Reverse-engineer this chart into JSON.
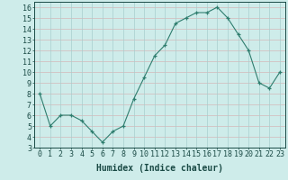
{
  "x": [
    0,
    1,
    2,
    3,
    4,
    5,
    6,
    7,
    8,
    9,
    10,
    11,
    12,
    13,
    14,
    15,
    16,
    17,
    18,
    19,
    20,
    21,
    22,
    23
  ],
  "y": [
    8,
    5,
    6,
    6,
    5.5,
    4.5,
    3.5,
    4.5,
    5,
    7.5,
    9.5,
    11.5,
    12.5,
    14.5,
    15,
    15.5,
    15.5,
    16,
    15,
    13.5,
    12,
    9,
    8.5,
    10
  ],
  "line_color": "#2e7d6e",
  "marker_color": "#2e7d6e",
  "bg_color": "#ceecea",
  "grid_color_h": "#d4b8b8",
  "grid_color_v": "#a8cece",
  "xlabel": "Humidex (Indice chaleur)",
  "xlim": [
    -0.5,
    23.5
  ],
  "ylim": [
    3,
    16.5
  ],
  "yticks": [
    3,
    4,
    5,
    6,
    7,
    8,
    9,
    10,
    11,
    12,
    13,
    14,
    15,
    16
  ],
  "xticks": [
    0,
    1,
    2,
    3,
    4,
    5,
    6,
    7,
    8,
    9,
    10,
    11,
    12,
    13,
    14,
    15,
    16,
    17,
    18,
    19,
    20,
    21,
    22,
    23
  ],
  "tick_color": "#1a4a45",
  "xlabel_fontsize": 7,
  "tick_fontsize": 6
}
